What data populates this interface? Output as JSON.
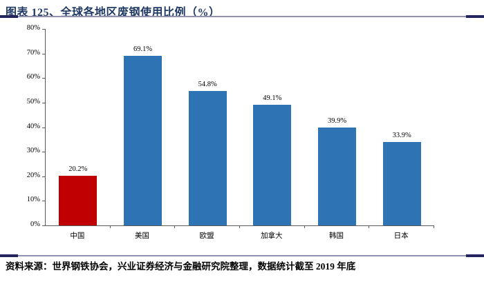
{
  "header": {
    "title": "图表 125、全球各地区废钢使用比例（%）"
  },
  "footer": {
    "source": "资料来源：世界钢铁协会，兴业证券经济与金融研究院整理，数据统计截至 2019 年底"
  },
  "colors": {
    "title_text": "#1f3864",
    "highlight_bar": "#c00000",
    "default_bar": "#2e74b5",
    "axis": "#595959",
    "rule_line": "#9090b3",
    "rule_cap": "#24245e"
  },
  "chart_data": {
    "type": "bar",
    "title": "全球各地区废钢使用比例（%）",
    "categories": [
      "中国",
      "美国",
      "欧盟",
      "加拿大",
      "韩国",
      "日本"
    ],
    "values": [
      20.2,
      69.1,
      54.8,
      49.1,
      39.9,
      33.9
    ],
    "value_labels": [
      "20.2%",
      "69.1%",
      "54.8%",
      "49.1%",
      "39.9%",
      "33.9%"
    ],
    "bar_colors": [
      "#c00000",
      "#2e74b5",
      "#2e74b5",
      "#2e74b5",
      "#2e74b5",
      "#2e74b5"
    ],
    "xlabel": "",
    "ylabel": "",
    "ylim": [
      0,
      80
    ],
    "ytick_labels": [
      "0%",
      "10%",
      "20%",
      "30%",
      "40%",
      "50%",
      "60%",
      "70%",
      "80%"
    ],
    "grid": false,
    "legend": "none"
  }
}
